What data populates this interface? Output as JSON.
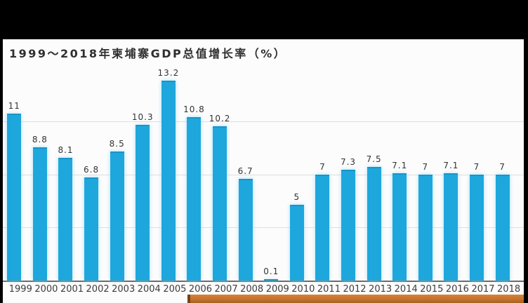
{
  "page": {
    "background": "#fcfcfc"
  },
  "chart_data": {
    "type": "bar",
    "title": "1999～2018年柬埔寨GDP总值增长率（%）",
    "categories": [
      "1999",
      "2000",
      "2001",
      "2002",
      "2003",
      "2004",
      "2005",
      "2006",
      "2007",
      "2008",
      "2009",
      "2010",
      "2011",
      "2012",
      "2013",
      "2014",
      "2015",
      "2016",
      "2017",
      "2018"
    ],
    "values": [
      11,
      8.8,
      8.1,
      6.8,
      8.5,
      10.3,
      13.2,
      10.8,
      10.2,
      6.7,
      0.1,
      5,
      7,
      7.3,
      7.5,
      7.1,
      7,
      7.1,
      7,
      7
    ],
    "value_labels": [
      "11",
      "8.8",
      "8.1",
      "6.8",
      "8.5",
      "10.3",
      "13.2",
      "10.8",
      "10.2",
      "6.7",
      "0.1",
      "5",
      "7",
      "7.3",
      "7.5",
      "7.1",
      "7",
      "7.1",
      "7",
      "7"
    ],
    "xlabel": "",
    "ylabel": "",
    "ylim": [
      0,
      14
    ],
    "gridlines": [
      3.5,
      7,
      10.5
    ],
    "grid": "horizontal-only",
    "legend": "none",
    "bar_color": "#1ea7dc",
    "bar_glow_color": "#a6dff5",
    "accent_bar_color": "#c4722e",
    "frame_color": "#000000"
  }
}
